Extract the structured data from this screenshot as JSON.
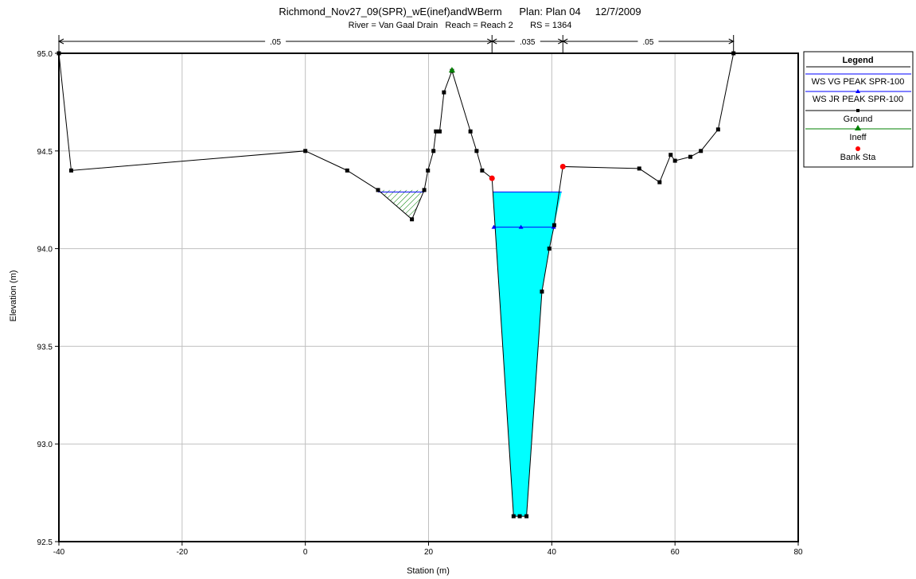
{
  "chart_data": {
    "type": "line",
    "title": "Richmond_Nov27_09(SPR)_wE(inef)andWBerm      Plan: Plan 04     12/7/2009",
    "subtitle": "River = Van Gaal Drain   Reach = Reach 2       RS = 1364",
    "xlabel": "Station (m)",
    "ylabel": "Elevation (m)",
    "xlim": [
      -40,
      80
    ],
    "ylim": [
      92.5,
      95.0
    ],
    "x_ticks": [
      "-40",
      "-20",
      "0",
      "20",
      "40",
      "60",
      "80"
    ],
    "y_ticks": [
      "92.5",
      "93.0",
      "93.5",
      "94.0",
      "94.5",
      "95.0"
    ],
    "grid": true,
    "legend_position": "right",
    "legend": {
      "title": "Legend",
      "entries": [
        "WS VG PEAK SPR-100",
        "WS JR PEAK SPR-100",
        "Ground",
        "Ineff",
        "Bank Sta"
      ]
    },
    "mannings": {
      "breaks": [
        -40,
        30.3,
        41.8,
        69.5
      ],
      "labels": [
        ".05",
        ".035",
        ".05"
      ]
    },
    "series": [
      {
        "name": "Ground",
        "color": "#000000",
        "marker": "square",
        "x": [
          -40,
          -38,
          0,
          6.8,
          11.8,
          17.3,
          19.3,
          19.9,
          20.8,
          21.2,
          21.8,
          22.5,
          23.8,
          26.8,
          27.8,
          28.7,
          30.3,
          33.8,
          34.8,
          35.9,
          38.4,
          39.6,
          40.4,
          41.8,
          54.2,
          57.5,
          59.3,
          60,
          62.5,
          64.2,
          67,
          69.5
        ],
        "y": [
          95.0,
          94.4,
          94.5,
          94.4,
          94.3,
          94.15,
          94.3,
          94.4,
          94.5,
          94.6,
          94.6,
          94.8,
          94.91,
          94.6,
          94.5,
          94.4,
          94.36,
          92.63,
          92.63,
          92.63,
          93.78,
          94.0,
          94.12,
          94.42,
          94.41,
          94.34,
          94.48,
          94.45,
          94.47,
          94.5,
          94.61,
          95.0
        ]
      },
      {
        "name": "WS VG PEAK SPR-100",
        "color": "#0000ff",
        "elevation": 94.29,
        "x": [
          30.4,
          41.6
        ]
      },
      {
        "name": "WS JR PEAK SPR-100",
        "color": "#0000ff",
        "elevation": 94.11,
        "x": [
          30.6,
          40.3
        ],
        "markers_x": [
          30.6,
          35,
          40.3
        ]
      },
      {
        "name": "Ineff",
        "color": "#008000",
        "x": [
          23.8
        ],
        "y": [
          94.91
        ]
      },
      {
        "name": "Bank Sta",
        "color": "#ff0000",
        "x": [
          30.3,
          41.8
        ],
        "y": [
          94.36,
          94.42
        ]
      }
    ],
    "ineffective_area": {
      "x": [
        11.8,
        17.3,
        19.3
      ],
      "y": [
        94.3,
        94.15,
        94.3
      ],
      "water_elevation": 94.29
    }
  }
}
